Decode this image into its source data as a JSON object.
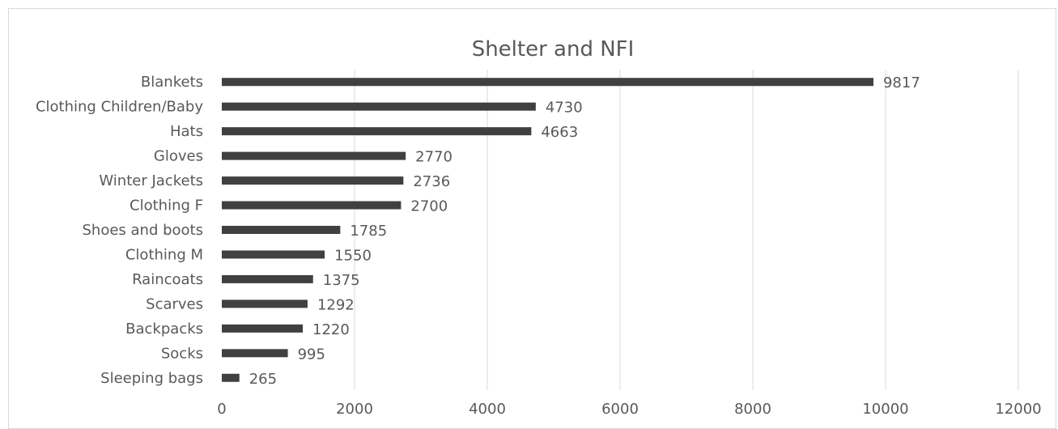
{
  "chart_data": {
    "type": "bar",
    "orientation": "horizontal",
    "title": "Shelter and NFI",
    "categories": [
      "Blankets",
      "Clothing Children/Baby",
      "Hats ",
      "Gloves",
      "Winter Jackets",
      "Clothing F",
      "Shoes and boots",
      "Clothing M",
      "Raincoats",
      "Scarves",
      "Backpacks",
      "Socks",
      "Sleeping bags"
    ],
    "values": [
      9817,
      4730,
      4663,
      2770,
      2736,
      2700,
      1785,
      1550,
      1375,
      1292,
      1220,
      995,
      265
    ],
    "x_ticks": [
      0,
      2000,
      4000,
      6000,
      8000,
      10000,
      12000
    ],
    "xlim": [
      0,
      12000
    ],
    "xlabel": "",
    "ylabel": "",
    "grid": true,
    "data_labels": true,
    "bar_color": "#404040",
    "grid_color": "#d9d9d9",
    "text_color": "#595959"
  }
}
